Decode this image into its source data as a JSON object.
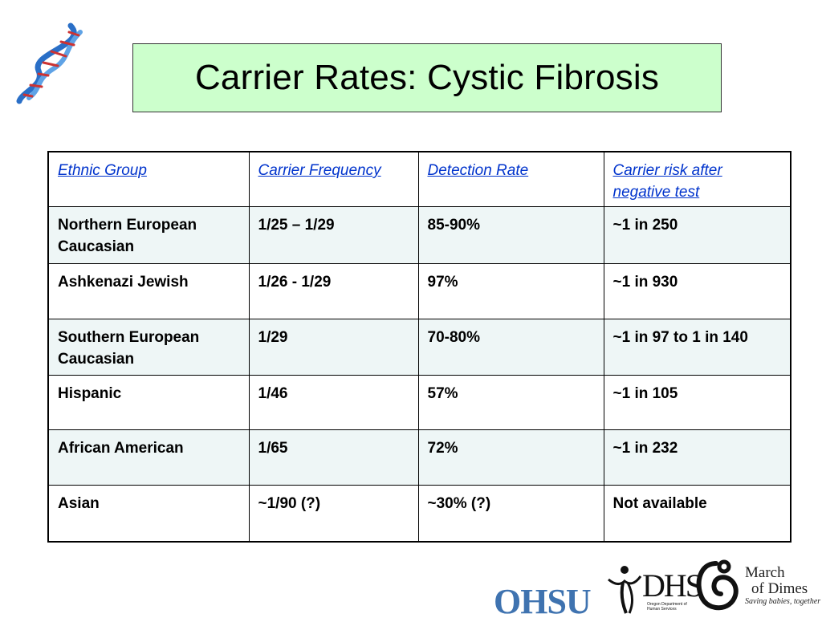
{
  "title": "Carrier Rates: Cystic Fibrosis",
  "table": {
    "headers": [
      "Ethnic Group",
      "Carrier Frequency",
      "Detection Rate",
      "Carrier risk after negative test"
    ],
    "rows": [
      [
        "Northern European Caucasian",
        "1/25 – 1/29",
        "85-90%",
        "~1 in 250"
      ],
      [
        "Ashkenazi Jewish",
        "1/26 - 1/29",
        "97%",
        "~1 in 930"
      ],
      [
        "Southern European Caucasian",
        "1/29",
        "70-80%",
        "~1 in 97 to 1 in 140"
      ],
      [
        "Hispanic",
        "1/46",
        "57%",
        "~1 in 105"
      ],
      [
        "African American",
        "1/65",
        "72%",
        "~1 in 232"
      ],
      [
        "Asian",
        "~1/90 (?)",
        "~30% (?)",
        "Not available"
      ]
    ]
  },
  "logos": {
    "ohsu": "OHSU",
    "dhs": "DHS",
    "dhs_subtitle": "Oregon Department of Human Services",
    "march_of_dimes_line1": "March",
    "march_of_dimes_line2": "of Dimes",
    "march_of_dimes_tagline": "Saving babies, together"
  },
  "colors": {
    "title_bg": "#ccffcc",
    "header_link": "#0033cc",
    "shaded_row": "#eef6f6",
    "ohsu_blue": "#3f73b0"
  },
  "icons": [
    "dna-helix-icon",
    "march-of-dimes-mother-child-icon",
    "dhs-figure-icon"
  ]
}
